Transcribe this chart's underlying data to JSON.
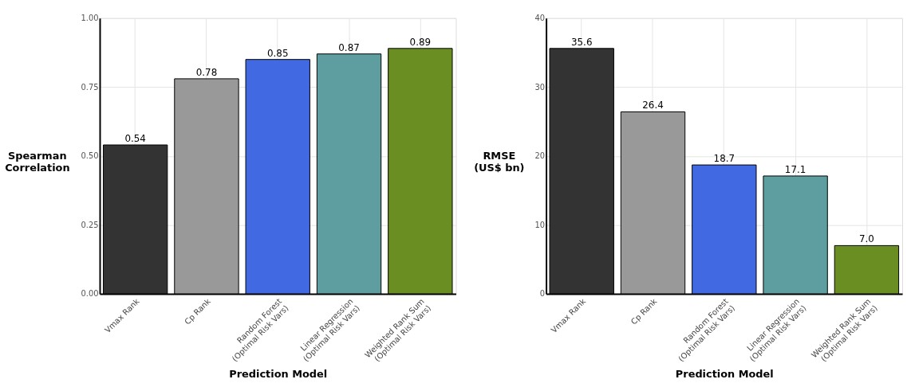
{
  "chart_data": [
    {
      "type": "bar",
      "xlabel": "Prediction Model",
      "ylabel": "Spearman\nCorrelation",
      "categories": [
        "Vmax Rank",
        "Cp Rank",
        "Random Forest\n(Optimal Risk Vars)",
        "Linear Regression\n(Optimal Risk Vars)",
        "Weighted Rank Sum\n(Optimal Risk Vars)"
      ],
      "values": [
        0.54,
        0.78,
        0.85,
        0.87,
        0.89
      ],
      "colors": [
        "#333333",
        "#999999",
        "#4169e1",
        "#5f9ea0",
        "#6b8e23"
      ],
      "ylim": [
        0,
        1
      ],
      "yticks": [
        {
          "value": 0,
          "label": "0.00"
        },
        {
          "value": 0.25,
          "label": "0.25"
        },
        {
          "value": 0.5,
          "label": "0.50"
        },
        {
          "value": 0.75,
          "label": "0.75"
        },
        {
          "value": 1,
          "label": "1.00"
        }
      ],
      "grid": true,
      "data_labels": true
    },
    {
      "type": "bar",
      "xlabel": "Prediction Model",
      "ylabel": "RMSE\n(US$ bn)",
      "categories": [
        "Vmax Rank",
        "Cp Rank",
        "Random Forest\n(Optimal Risk Vars)",
        "Linear Regression\n(Optimal Risk Vars)",
        "Weighted Rank Sum\n(Optimal Risk Vars)"
      ],
      "values": [
        35.6,
        26.4,
        18.7,
        17.1,
        7.0
      ],
      "value_labels": [
        "35.6",
        "26.4",
        "18.7",
        "17.1",
        "7.0"
      ],
      "colors": [
        "#333333",
        "#999999",
        "#4169e1",
        "#5f9ea0",
        "#6b8e23"
      ],
      "ylim": [
        0,
        40
      ],
      "yticks": [
        0,
        10,
        20,
        30,
        40
      ],
      "grid": true
    }
  ]
}
